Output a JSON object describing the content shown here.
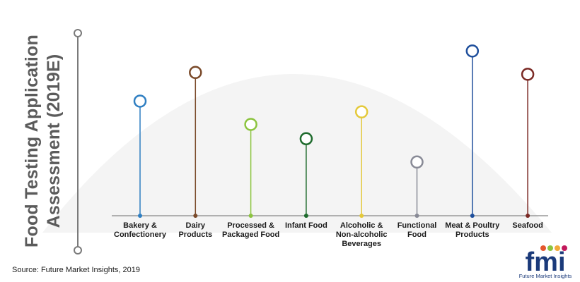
{
  "title": "Food Testing Application\nAssessment (2019E)",
  "source": "Source: Future Market Insights, 2019",
  "logo": {
    "mark": "fmi",
    "name": "Future Market Insights"
  },
  "colors": {
    "axis": "#999999",
    "title_text": "#5b5b5b",
    "background_arc": "#f3f3f3"
  },
  "chart_data": {
    "type": "lollipop",
    "categories": [
      "Bakery &\nConfectionery",
      "Dairy\nProducts",
      "Processed &\nPackaged Food",
      "Infant Food",
      "Alcoholic &\nNon-alcoholic\nBeverages",
      "Functional\nFood",
      "Meat & Poultry\nProducts",
      "Seafood"
    ],
    "values": [
      6.4,
      8.0,
      5.1,
      4.3,
      5.8,
      3.0,
      9.2,
      7.9
    ],
    "colors": [
      "#2f7fc2",
      "#7a4a2a",
      "#8cc43f",
      "#1e6b2d",
      "#e4c93a",
      "#888a96",
      "#1f4f9c",
      "#7b2a25"
    ],
    "ylim": [
      0,
      10
    ],
    "grid": false,
    "y_tick_labels": false
  }
}
